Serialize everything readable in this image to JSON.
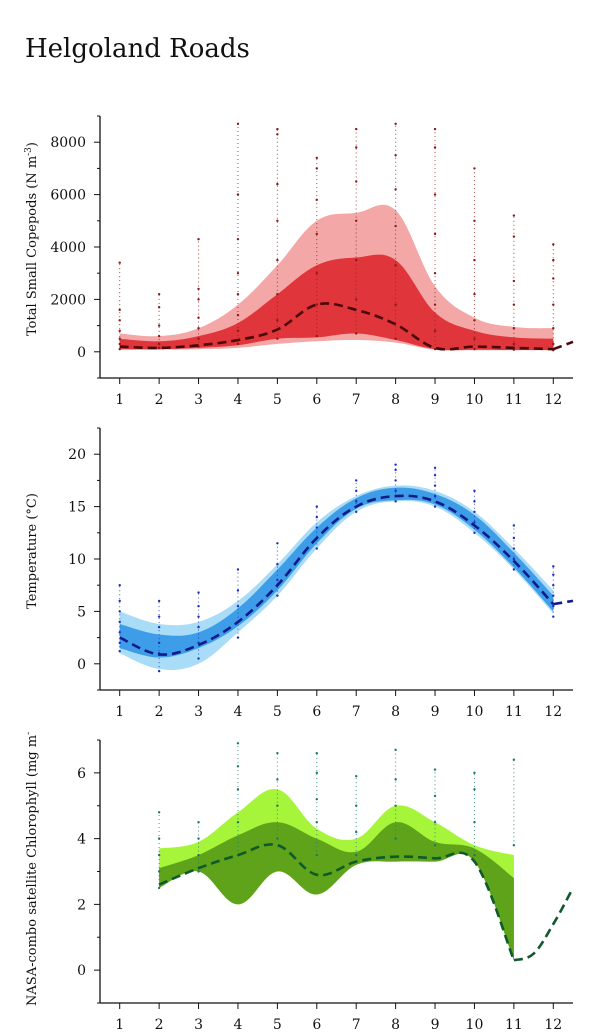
{
  "title": "Helgoland Roads",
  "chart_data": [
    {
      "type": "area",
      "ylabel": "Total Small Copepods (N m",
      "ylabel_sup": "-3",
      "ylabel_tail": ")",
      "x_ticks": [
        "1",
        "2",
        "3",
        "4",
        "5",
        "6",
        "7",
        "8",
        "9",
        "10",
        "11",
        "12"
      ],
      "xlim": [
        0.5,
        12.5
      ],
      "ylim": [
        -1000,
        9000
      ],
      "y_ticks": [
        0,
        2000,
        4000,
        6000,
        8000
      ],
      "colors": {
        "outer": "#f4a7a7",
        "inner": "#e0353a",
        "line": "#4a0808",
        "points": "#8b1a1a"
      },
      "months": [
        1,
        2,
        3,
        4,
        5,
        6,
        7,
        8,
        9,
        10,
        11,
        12
      ],
      "outer_lower": [
        80,
        80,
        100,
        150,
        300,
        400,
        450,
        350,
        80,
        60,
        60,
        60
      ],
      "outer_upper": [
        700,
        600,
        900,
        1800,
        3300,
        5000,
        5300,
        5400,
        2500,
        1300,
        950,
        900
      ],
      "inner_lower": [
        100,
        100,
        150,
        250,
        500,
        550,
        700,
        450,
        100,
        80,
        70,
        70
      ],
      "inner_upper": [
        500,
        400,
        600,
        1100,
        2200,
        3300,
        3600,
        3500,
        1500,
        800,
        550,
        500
      ],
      "median": [
        200,
        150,
        250,
        450,
        850,
        1800,
        1600,
        1050,
        150,
        200,
        150,
        100
      ],
      "median_extension": {
        "x": [
          12,
          12.5
        ],
        "y": [
          100,
          380
        ]
      },
      "observations": [
        {
          "month": 1,
          "values": [
            100,
            300,
            500,
            800,
            1200,
            1600,
            3400
          ]
        },
        {
          "month": 2,
          "values": [
            150,
            300,
            600,
            1000,
            1700,
            2200
          ]
        },
        {
          "month": 3,
          "values": [
            200,
            500,
            900,
            1300,
            2000,
            2400,
            4300
          ]
        },
        {
          "month": 4,
          "values": [
            300,
            800,
            1400,
            2200,
            3000,
            4300,
            6000,
            8700
          ]
        },
        {
          "month": 5,
          "values": [
            500,
            1200,
            2200,
            3500,
            5000,
            6400,
            8300,
            8500
          ]
        },
        {
          "month": 6,
          "values": [
            600,
            1800,
            3000,
            4500,
            5800,
            7000,
            7400
          ]
        },
        {
          "month": 7,
          "values": [
            700,
            2000,
            3500,
            5000,
            6500,
            7800,
            8500
          ]
        },
        {
          "month": 8,
          "values": [
            500,
            1800,
            3300,
            4800,
            6200,
            7500,
            8700
          ]
        },
        {
          "month": 9,
          "values": [
            100,
            800,
            1800,
            3000,
            4500,
            6000,
            7800,
            8500
          ]
        },
        {
          "month": 10,
          "values": [
            100,
            500,
            1200,
            2200,
            3500,
            5000,
            7000
          ]
        },
        {
          "month": 11,
          "values": [
            80,
            300,
            900,
            1800,
            2700,
            4400,
            5200
          ]
        },
        {
          "month": 12,
          "values": [
            60,
            300,
            900,
            1800,
            2800,
            3500,
            4100
          ]
        }
      ]
    },
    {
      "type": "area",
      "ylabel": "Temperature (°C)",
      "ylabel_sup": "",
      "ylabel_tail": "",
      "x_ticks": [
        "1",
        "2",
        "3",
        "4",
        "5",
        "6",
        "7",
        "8",
        "9",
        "10",
        "11",
        "12"
      ],
      "xlim": [
        0.5,
        12.5
      ],
      "ylim": [
        -2.5,
        22.5
      ],
      "y_ticks": [
        0,
        5,
        10,
        15,
        20
      ],
      "colors": {
        "outer": "#a9dcf7",
        "inner": "#3e9de8",
        "line": "#101a8a",
        "points": "#1a2fbf"
      },
      "months": [
        1,
        2,
        3,
        4,
        5,
        6,
        7,
        8,
        9,
        10,
        11,
        12
      ],
      "outer_lower": [
        1.0,
        -0.5,
        0.0,
        3.0,
        6.5,
        11.0,
        14.5,
        15.5,
        15.0,
        12.5,
        9.0,
        4.8
      ],
      "outer_upper": [
        5.0,
        3.8,
        4.0,
        6.0,
        9.5,
        13.5,
        16.0,
        17.0,
        16.5,
        14.5,
        11.0,
        7.0
      ],
      "inner_lower": [
        1.5,
        0.6,
        1.5,
        3.6,
        7.0,
        11.5,
        14.8,
        15.6,
        15.2,
        12.8,
        9.2,
        5.0
      ],
      "inner_upper": [
        3.8,
        2.8,
        3.0,
        5.3,
        9.0,
        13.0,
        15.8,
        16.8,
        16.2,
        14.2,
        10.6,
        6.5
      ],
      "median": [
        2.5,
        0.9,
        1.8,
        4.0,
        7.5,
        12.0,
        15.0,
        16.0,
        15.5,
        13.2,
        9.8,
        5.7
      ],
      "median_extension": {
        "x": [
          12,
          12.5
        ],
        "y": [
          5.7,
          6.0
        ]
      },
      "observations": [
        {
          "month": 1,
          "values": [
            1.2,
            2.0,
            3.0,
            4.0,
            5.0,
            6.0,
            7.5
          ]
        },
        {
          "month": 2,
          "values": [
            -0.7,
            1.0,
            2.0,
            3.5,
            4.5,
            6.0
          ]
        },
        {
          "month": 3,
          "values": [
            0.5,
            2.0,
            3.5,
            4.5,
            5.5,
            6.8
          ]
        },
        {
          "month": 4,
          "values": [
            2.5,
            4.0,
            5.5,
            7.0,
            9.0
          ]
        },
        {
          "month": 5,
          "values": [
            6.5,
            8.0,
            9.5,
            11.5
          ]
        },
        {
          "month": 6,
          "values": [
            11.0,
            12.0,
            13.0,
            14.0,
            15.0
          ]
        },
        {
          "month": 7,
          "values": [
            14.5,
            15.5,
            16.5,
            17.5
          ]
        },
        {
          "month": 8,
          "values": [
            15.5,
            16.5,
            17.5,
            18.5,
            19.0
          ]
        },
        {
          "month": 9,
          "values": [
            15.0,
            16.0,
            17.0,
            18.0,
            18.7
          ]
        },
        {
          "month": 10,
          "values": [
            12.5,
            13.5,
            14.5,
            15.5,
            16.5
          ]
        },
        {
          "month": 11,
          "values": [
            9.0,
            10.0,
            11.0,
            12.0,
            13.2
          ]
        },
        {
          "month": 12,
          "values": [
            4.5,
            5.5,
            6.5,
            7.5,
            8.5,
            9.3
          ]
        }
      ]
    },
    {
      "type": "area",
      "ylabel": "NASA-combo satellite Chlorophyll (mg m",
      "ylabel_sup": "-3",
      "ylabel_tail": ")",
      "x_ticks": [
        "1",
        "2",
        "3",
        "4",
        "5",
        "6",
        "7",
        "8",
        "9",
        "10",
        "11",
        "12"
      ],
      "xlim": [
        0.5,
        12.5
      ],
      "ylim": [
        -1,
        7
      ],
      "y_ticks": [
        0,
        2,
        4,
        6
      ],
      "colors": {
        "outer": "#a6f53a",
        "inner": "#5ea31a",
        "line": "#0f5a2a",
        "points": "#1a7a6a"
      },
      "months": [
        2,
        3,
        4,
        5,
        6,
        7,
        8,
        9,
        10,
        11
      ],
      "outer_lower": [
        2.5,
        3.0,
        2.0,
        3.0,
        2.3,
        3.2,
        3.3,
        3.3,
        3.3,
        0.3
      ],
      "outer_upper": [
        3.7,
        3.9,
        4.8,
        5.5,
        4.3,
        4.0,
        5.0,
        4.5,
        3.8,
        3.5
      ],
      "inner_lower": [
        2.5,
        3.0,
        2.0,
        3.0,
        2.3,
        3.2,
        3.3,
        3.3,
        3.3,
        0.3
      ],
      "inner_upper": [
        3.1,
        3.5,
        4.1,
        4.5,
        4.0,
        3.6,
        4.5,
        3.9,
        3.7,
        2.8
      ],
      "median": [
        2.6,
        3.1,
        3.5,
        3.8,
        2.9,
        3.3,
        3.45,
        3.4,
        3.3,
        0.3
      ],
      "median_extension": {
        "x": [
          11,
          11.5,
          12,
          12.5
        ],
        "y": [
          0.3,
          0.5,
          1.4,
          2.5
        ]
      },
      "observations": [
        {
          "month": 2,
          "values": [
            2.5,
            3.0,
            3.5,
            4.0,
            4.8
          ]
        },
        {
          "month": 3,
          "values": [
            3.0,
            3.5,
            4.0,
            4.5
          ]
        },
        {
          "month": 4,
          "values": [
            3.5,
            4.5,
            5.5,
            6.2,
            6.9
          ]
        },
        {
          "month": 5,
          "values": [
            4.0,
            5.0,
            5.8,
            6.6
          ]
        },
        {
          "month": 6,
          "values": [
            3.5,
            4.5,
            5.2,
            6.0,
            6.6
          ]
        },
        {
          "month": 7,
          "values": [
            3.5,
            4.2,
            5.0,
            5.9
          ]
        },
        {
          "month": 8,
          "values": [
            4.0,
            5.0,
            5.8,
            6.7
          ]
        },
        {
          "month": 9,
          "values": [
            3.8,
            4.5,
            5.3,
            6.1
          ]
        },
        {
          "month": 10,
          "values": [
            3.5,
            4.5,
            5.5,
            6.0
          ]
        },
        {
          "month": 11,
          "values": [
            3.8,
            6.4
          ]
        }
      ]
    }
  ]
}
